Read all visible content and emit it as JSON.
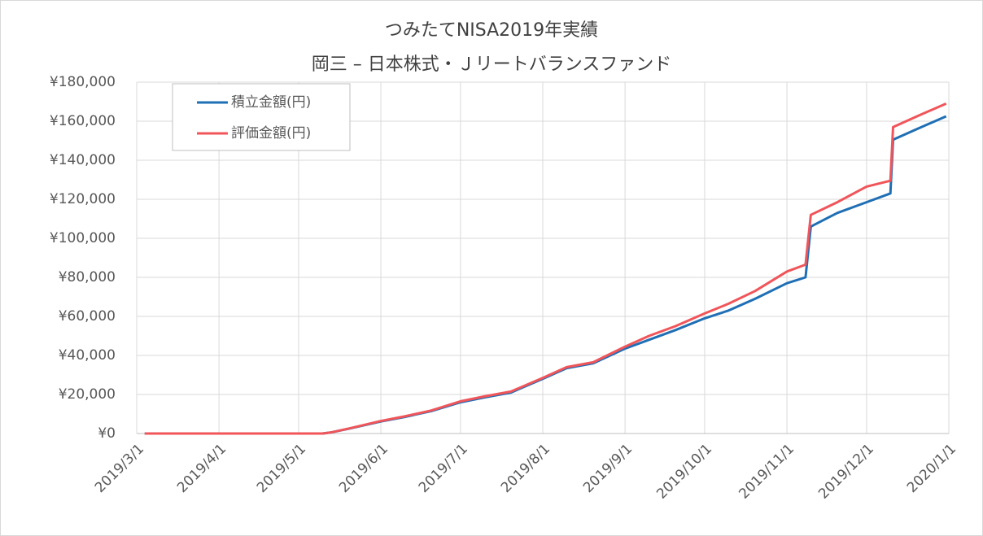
{
  "chart_data": {
    "type": "line",
    "title": "つみたてNISA2019年実績",
    "subtitle": "岡三 – 日本株式・Ｊリートバランスファンド",
    "x": [
      "2019/3/4",
      "2019/5/10",
      "2019/5/13",
      "2019/5/20",
      "2019/6/1",
      "2019/6/10",
      "2019/6/20",
      "2019/7/1",
      "2019/7/10",
      "2019/7/20",
      "2019/8/1",
      "2019/8/10",
      "2019/8/20",
      "2019/9/1",
      "2019/9/10",
      "2019/9/20",
      "2019/10/1",
      "2019/10/10",
      "2019/10/20",
      "2019/11/1",
      "2019/11/8",
      "2019/11/10",
      "2019/11/20",
      "2019/12/1",
      "2019/12/10",
      "2019/12/11",
      "2019/12/20",
      "2019/12/31"
    ],
    "series": [
      {
        "name": "積立金額(円)",
        "color": "#1f6fb5",
        "values": [
          0,
          0,
          500,
          2500,
          6200,
          8500,
          11500,
          16000,
          18500,
          21000,
          28000,
          33500,
          36000,
          43500,
          48000,
          53000,
          59000,
          63000,
          69000,
          77000,
          80000,
          106000,
          113000,
          118500,
          123000,
          150500,
          156000,
          162500
        ]
      },
      {
        "name": "評価金額(円)",
        "color": "#f0555a",
        "values": [
          0,
          0,
          500,
          2600,
          6400,
          8800,
          11800,
          16500,
          19000,
          21500,
          28500,
          34000,
          36500,
          44500,
          50000,
          55000,
          61500,
          66500,
          73000,
          83000,
          86500,
          112000,
          118500,
          126500,
          129500,
          157000,
          162500,
          169000
        ]
      }
    ],
    "xlim": [
      "2019/3/1",
      "2020/1/1"
    ],
    "xticks": [
      "2019/3/1",
      "2019/4/1",
      "2019/5/1",
      "2019/6/1",
      "2019/7/1",
      "2019/8/1",
      "2019/9/1",
      "2019/10/1",
      "2019/11/1",
      "2019/12/1",
      "2020/1/1"
    ],
    "ylim": [
      0,
      180000
    ],
    "yticks": [
      {
        "value": 0,
        "label": "¥0"
      },
      {
        "value": 20000,
        "label": "¥20,000"
      },
      {
        "value": 40000,
        "label": "¥40,000"
      },
      {
        "value": 60000,
        "label": "¥60,000"
      },
      {
        "value": 80000,
        "label": "¥80,000"
      },
      {
        "value": 100000,
        "label": "¥100,000"
      },
      {
        "value": 120000,
        "label": "¥120,000"
      },
      {
        "value": 140000,
        "label": "¥140,000"
      },
      {
        "value": 160000,
        "label": "¥160,000"
      },
      {
        "value": 180000,
        "label": "¥180,000"
      }
    ],
    "grid": true,
    "legend": "upper-left"
  }
}
